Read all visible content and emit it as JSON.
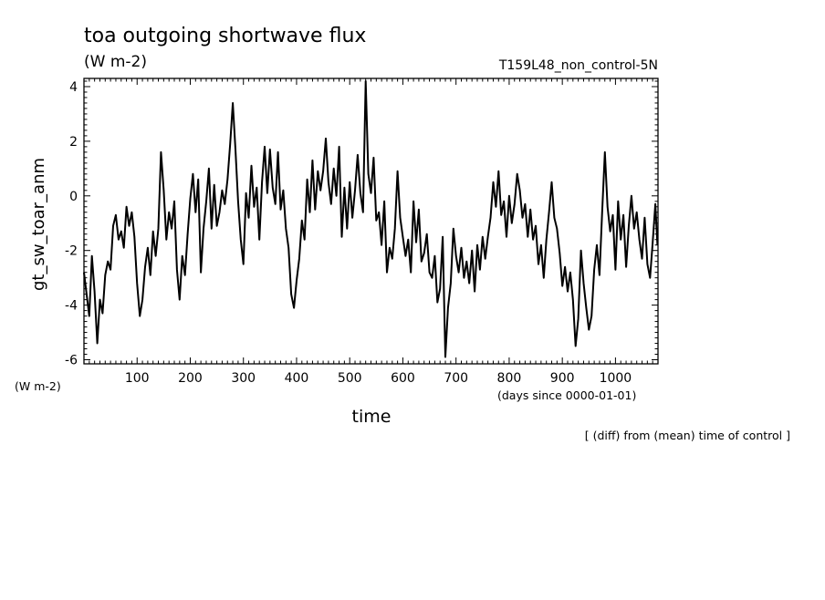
{
  "chart_data": {
    "type": "line",
    "title": "toa outgoing shortwave flux",
    "title_units": "(W m-2)",
    "experiment": "T159L48_non_control-5N",
    "ylabel": "gt_sw_toar_anm",
    "y_units": "(W m-2)",
    "xlabel": "time",
    "x_units": "(days since 0000-01-01)",
    "note": "[ (diff) from (mean) time of control ]",
    "xlim": [
      0,
      1080
    ],
    "ylim": [
      -6.15,
      4.3
    ],
    "xticks": [
      100,
      200,
      300,
      400,
      500,
      600,
      700,
      800,
      900,
      1000
    ],
    "yticks": [
      -6,
      -4,
      -2,
      0,
      2,
      4
    ],
    "grid": false,
    "series": [
      {
        "points": [
          [
            0,
            -2.8
          ],
          [
            10,
            -4.4
          ],
          [
            15,
            -2.2
          ],
          [
            20,
            -3.5
          ],
          [
            25,
            -5.4
          ],
          [
            30,
            -3.8
          ],
          [
            35,
            -4.3
          ],
          [
            40,
            -2.9
          ],
          [
            45,
            -2.4
          ],
          [
            50,
            -2.7
          ],
          [
            55,
            -1.1
          ],
          [
            60,
            -0.7
          ],
          [
            65,
            -1.6
          ],
          [
            70,
            -1.3
          ],
          [
            75,
            -1.9
          ],
          [
            80,
            -0.4
          ],
          [
            85,
            -1.1
          ],
          [
            90,
            -0.6
          ],
          [
            95,
            -1.5
          ],
          [
            100,
            -3.2
          ],
          [
            105,
            -4.4
          ],
          [
            110,
            -3.8
          ],
          [
            115,
            -2.6
          ],
          [
            120,
            -1.9
          ],
          [
            125,
            -2.9
          ],
          [
            130,
            -1.3
          ],
          [
            135,
            -2.2
          ],
          [
            140,
            -1.2
          ],
          [
            145,
            1.6
          ],
          [
            150,
            0.2
          ],
          [
            155,
            -1.6
          ],
          [
            160,
            -0.6
          ],
          [
            165,
            -1.2
          ],
          [
            170,
            -0.2
          ],
          [
            175,
            -2.7
          ],
          [
            180,
            -3.8
          ],
          [
            185,
            -2.2
          ],
          [
            190,
            -2.9
          ],
          [
            195,
            -1.4
          ],
          [
            200,
            -0.1
          ],
          [
            205,
            0.8
          ],
          [
            210,
            -0.6
          ],
          [
            215,
            0.6
          ],
          [
            220,
            -2.8
          ],
          [
            225,
            -1.2
          ],
          [
            230,
            -0.2
          ],
          [
            235,
            1.0
          ],
          [
            240,
            -1.2
          ],
          [
            245,
            0.4
          ],
          [
            250,
            -1.1
          ],
          [
            255,
            -0.6
          ],
          [
            260,
            0.2
          ],
          [
            265,
            -0.3
          ],
          [
            270,
            0.6
          ],
          [
            275,
            1.9
          ],
          [
            280,
            3.4
          ],
          [
            285,
            1.7
          ],
          [
            290,
            -0.2
          ],
          [
            295,
            -1.6
          ],
          [
            300,
            -2.5
          ],
          [
            305,
            0.1
          ],
          [
            310,
            -0.8
          ],
          [
            315,
            1.1
          ],
          [
            320,
            -0.4
          ],
          [
            325,
            0.3
          ],
          [
            330,
            -1.6
          ],
          [
            335,
            0.5
          ],
          [
            340,
            1.8
          ],
          [
            345,
            0.1
          ],
          [
            350,
            1.7
          ],
          [
            355,
            0.3
          ],
          [
            360,
            -0.3
          ],
          [
            365,
            1.6
          ],
          [
            370,
            -0.5
          ],
          [
            375,
            0.2
          ],
          [
            380,
            -1.2
          ],
          [
            385,
            -1.9
          ],
          [
            390,
            -3.6
          ],
          [
            395,
            -4.1
          ],
          [
            400,
            -3.1
          ],
          [
            405,
            -2.3
          ],
          [
            410,
            -0.9
          ],
          [
            415,
            -1.6
          ],
          [
            420,
            0.6
          ],
          [
            425,
            -0.6
          ],
          [
            430,
            1.3
          ],
          [
            435,
            -0.5
          ],
          [
            440,
            0.9
          ],
          [
            445,
            0.2
          ],
          [
            450,
            0.9
          ],
          [
            455,
            2.1
          ],
          [
            460,
            0.5
          ],
          [
            465,
            -0.3
          ],
          [
            470,
            1.0
          ],
          [
            475,
            0.0
          ],
          [
            480,
            1.8
          ],
          [
            485,
            -1.5
          ],
          [
            490,
            0.3
          ],
          [
            495,
            -1.2
          ],
          [
            500,
            0.5
          ],
          [
            505,
            -0.8
          ],
          [
            510,
            0.2
          ],
          [
            515,
            1.5
          ],
          [
            520,
            0.1
          ],
          [
            525,
            -0.6
          ],
          [
            530,
            4.2
          ],
          [
            535,
            0.8
          ],
          [
            540,
            0.1
          ],
          [
            545,
            1.4
          ],
          [
            550,
            -0.9
          ],
          [
            555,
            -0.6
          ],
          [
            560,
            -1.8
          ],
          [
            565,
            -0.2
          ],
          [
            570,
            -2.8
          ],
          [
            575,
            -1.9
          ],
          [
            580,
            -2.3
          ],
          [
            585,
            -1.2
          ],
          [
            590,
            0.9
          ],
          [
            595,
            -0.8
          ],
          [
            600,
            -1.5
          ],
          [
            605,
            -2.2
          ],
          [
            610,
            -1.6
          ],
          [
            615,
            -2.8
          ],
          [
            620,
            -0.2
          ],
          [
            625,
            -1.7
          ],
          [
            630,
            -0.5
          ],
          [
            635,
            -2.4
          ],
          [
            640,
            -2.1
          ],
          [
            645,
            -1.4
          ],
          [
            650,
            -2.8
          ],
          [
            655,
            -3.0
          ],
          [
            660,
            -2.2
          ],
          [
            665,
            -3.9
          ],
          [
            670,
            -3.4
          ],
          [
            675,
            -1.5
          ],
          [
            680,
            -5.9
          ],
          [
            685,
            -4.1
          ],
          [
            690,
            -3.2
          ],
          [
            695,
            -1.2
          ],
          [
            700,
            -2.2
          ],
          [
            705,
            -2.8
          ],
          [
            710,
            -1.9
          ],
          [
            715,
            -3.0
          ],
          [
            720,
            -2.4
          ],
          [
            725,
            -3.2
          ],
          [
            730,
            -2.0
          ],
          [
            735,
            -3.5
          ],
          [
            740,
            -1.8
          ],
          [
            745,
            -2.7
          ],
          [
            750,
            -1.5
          ],
          [
            755,
            -2.3
          ],
          [
            760,
            -1.5
          ],
          [
            765,
            -0.8
          ],
          [
            770,
            0.5
          ],
          [
            775,
            -0.4
          ],
          [
            780,
            0.9
          ],
          [
            785,
            -0.7
          ],
          [
            790,
            -0.2
          ],
          [
            795,
            -1.5
          ],
          [
            800,
            0.0
          ],
          [
            805,
            -1.0
          ],
          [
            810,
            -0.3
          ],
          [
            815,
            0.8
          ],
          [
            820,
            0.2
          ],
          [
            825,
            -0.8
          ],
          [
            830,
            -0.3
          ],
          [
            835,
            -1.5
          ],
          [
            840,
            -0.5
          ],
          [
            845,
            -1.6
          ],
          [
            850,
            -1.1
          ],
          [
            855,
            -2.5
          ],
          [
            860,
            -1.8
          ],
          [
            865,
            -3.0
          ],
          [
            870,
            -1.6
          ],
          [
            875,
            -0.6
          ],
          [
            880,
            0.5
          ],
          [
            885,
            -0.8
          ],
          [
            890,
            -1.2
          ],
          [
            895,
            -2.1
          ],
          [
            900,
            -3.3
          ],
          [
            905,
            -2.6
          ],
          [
            910,
            -3.5
          ],
          [
            915,
            -2.8
          ],
          [
            920,
            -3.8
          ],
          [
            925,
            -5.5
          ],
          [
            930,
            -4.5
          ],
          [
            935,
            -2.0
          ],
          [
            940,
            -3.2
          ],
          [
            945,
            -4.1
          ],
          [
            950,
            -4.9
          ],
          [
            955,
            -4.4
          ],
          [
            960,
            -2.7
          ],
          [
            965,
            -1.8
          ],
          [
            970,
            -2.9
          ],
          [
            975,
            -0.6
          ],
          [
            980,
            1.6
          ],
          [
            985,
            -0.4
          ],
          [
            990,
            -1.3
          ],
          [
            995,
            -0.7
          ],
          [
            1000,
            -2.7
          ],
          [
            1005,
            -0.2
          ],
          [
            1010,
            -1.6
          ],
          [
            1015,
            -0.7
          ],
          [
            1020,
            -2.6
          ],
          [
            1025,
            -1.1
          ],
          [
            1030,
            0.0
          ],
          [
            1035,
            -1.2
          ],
          [
            1040,
            -0.6
          ],
          [
            1045,
            -1.6
          ],
          [
            1050,
            -2.3
          ],
          [
            1055,
            -0.8
          ],
          [
            1060,
            -2.5
          ],
          [
            1065,
            -3.0
          ],
          [
            1070,
            -1.7
          ],
          [
            1075,
            -0.3
          ],
          [
            1079,
            -1.8
          ]
        ]
      }
    ]
  }
}
